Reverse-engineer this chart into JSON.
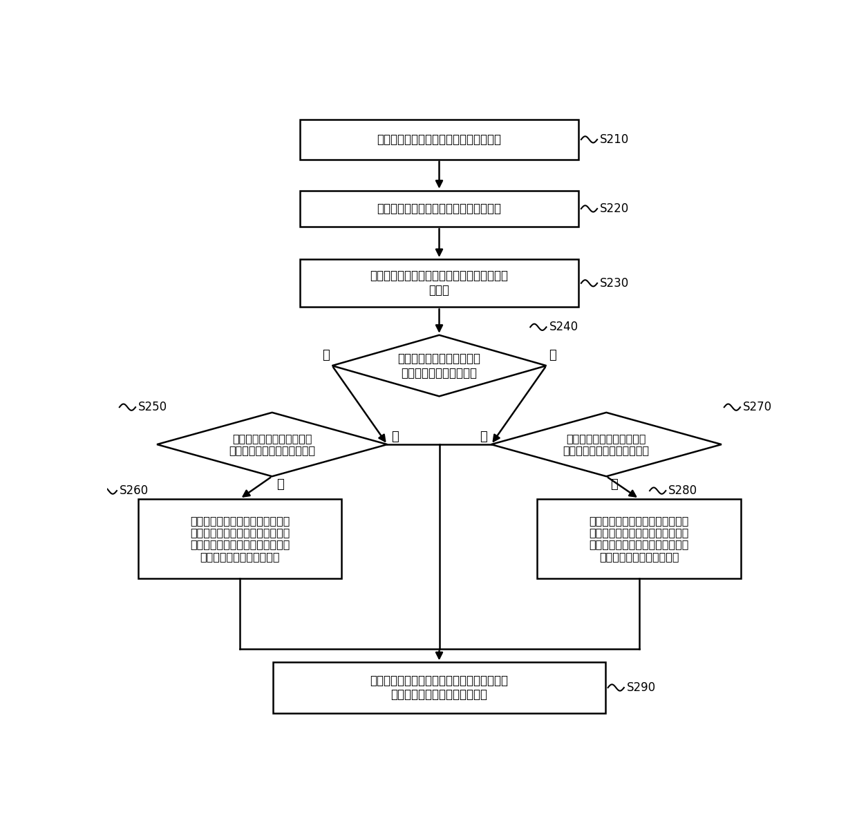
{
  "bg_color": "#ffffff",
  "border_color": "#000000",
  "text_color": "#000000",
  "arrow_color": "#000000",
  "s210_text": "接收至少一个麦克风采集的环境声音信号",
  "s220_text": "根据环境声音信号确定当前环境声音强度",
  "s230_text": "根据本机输出的声音信号确定当前本机输出声\n音强度",
  "s240_text": "判断当前环境声音强度是否\n大于预设标准声音强度？",
  "s250_text": "判断当前本机输出声音强度\n是否小于当前环境声音强度？",
  "s270_text": "判断当前本机输出声音强度\n是否小于预设标准声音强度？",
  "s260_text": "降低当前本机输出声音强度，直至\n当前本机输出声音强度小于当前环\n境声音强度，并基于降低后的本机\n输出声音强度输出声音信号",
  "s280_text": "降低当前本机输出声音强度，直至\n当前本机输出声音强度小于预设标\n准声音强度，并基于降低后的本机\n输出声音强度输出声音信号",
  "s290_text": "保持当前本机输出声音强度不变，并基于当前\n本机输出声音强度输出声音信号"
}
